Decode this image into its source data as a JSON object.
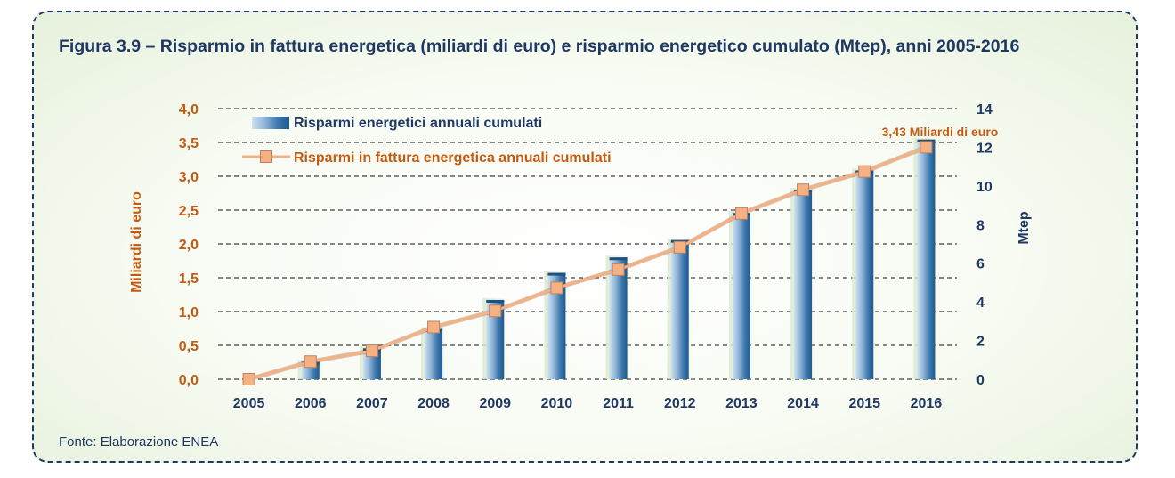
{
  "figure": {
    "title": "Figura 3.9 – Risparmio in fattura energetica (miliardi di euro) e risparmio energetico cumulato (Mtep), anni 2005-2016",
    "source": "Fonte: Elaborazione ENEA"
  },
  "chart_data": {
    "type": "bar",
    "categories": [
      "2005",
      "2006",
      "2007",
      "2008",
      "2009",
      "2010",
      "2011",
      "2012",
      "2013",
      "2014",
      "2015",
      "2016"
    ],
    "series": [
      {
        "name": "Risparmi energetici annuali cumulati",
        "type": "bar",
        "axis": "right",
        "values": [
          0,
          0.9,
          1.6,
          2.6,
          4.1,
          5.5,
          6.3,
          7.2,
          8.6,
          9.8,
          10.8,
          12.4
        ],
        "color": "#3a74a8"
      },
      {
        "name": "Risparmi in fattura energetica annuali cumulati",
        "type": "line",
        "axis": "left",
        "values": [
          0,
          0.26,
          0.42,
          0.77,
          1.01,
          1.35,
          1.62,
          1.95,
          2.45,
          2.8,
          3.07,
          3.43
        ],
        "color": "#f4b183"
      }
    ],
    "ylabel": "Miliardi di euro",
    "y2label": "Mtep",
    "ylim": [
      0,
      4.0
    ],
    "y2lim": [
      0,
      14
    ],
    "yticks": [
      "0,0",
      "0,5",
      "1,0",
      "1,5",
      "2,0",
      "2,5",
      "3,0",
      "3,5",
      "4,0"
    ],
    "y2ticks": [
      "0",
      "2",
      "4",
      "6",
      "8",
      "10",
      "12",
      "14"
    ],
    "annotation": "3,43 Miliardi di euro",
    "grid": true,
    "legend_position": "top-left"
  },
  "colors": {
    "title": "#1f3864",
    "left_axis": "#c55a11",
    "right_axis": "#1f3864",
    "grid": "#404040"
  }
}
